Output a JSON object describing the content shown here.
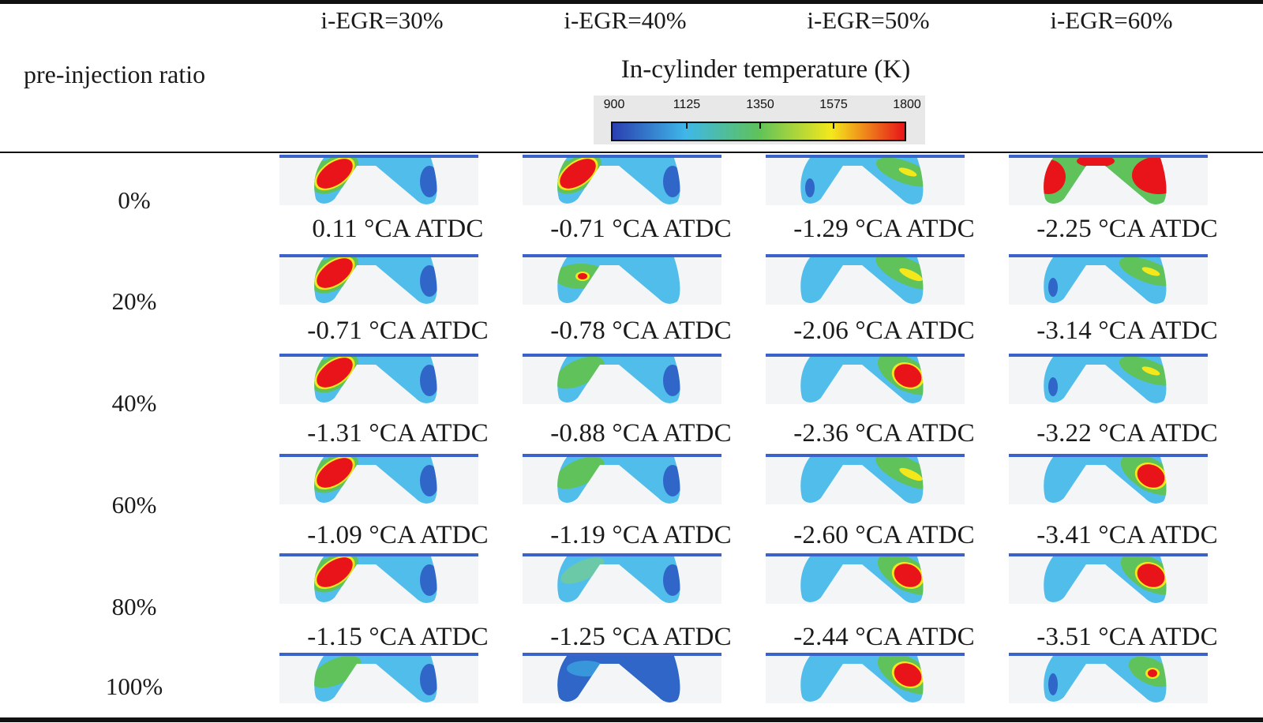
{
  "header": {
    "row_axis_label": "pre-injection ratio",
    "columns": [
      "i-EGR=30%",
      "i-EGR=40%",
      "i-EGR=50%",
      "i-EGR=60%"
    ],
    "legend": {
      "title": "In-cylinder temperature (K)",
      "ticks": [
        "900",
        "1125",
        "1350",
        "1575",
        "1800"
      ],
      "colors": [
        "#2a3fb0",
        "#3fb7e8",
        "#5fc25a",
        "#f4e81c",
        "#e8141a"
      ]
    }
  },
  "rows": [
    {
      "label": "0%",
      "captions": [
        "0.11 °CA ATDC",
        "-0.71 °CA ATDC",
        "-1.29 °CA ATDC",
        "-2.25 °CA ATDC"
      ]
    },
    {
      "label": "20%",
      "captions": [
        "-0.71 °CA ATDC",
        "-0.78 °CA ATDC",
        "-2.06 °CA ATDC",
        "-3.14 °CA ATDC"
      ]
    },
    {
      "label": "40%",
      "captions": [
        "-1.31 °CA ATDC",
        "-0.88 °CA ATDC",
        "-2.36 °CA ATDC",
        "-3.22 °CA ATDC"
      ]
    },
    {
      "label": "60%",
      "captions": [
        "-1.09 °CA ATDC",
        "-1.19 °CA ATDC",
        "-2.60 °CA ATDC",
        "-3.41 °CA ATDC"
      ]
    },
    {
      "label": "80%",
      "captions": [
        "-1.15 °CA ATDC",
        "-1.25 °CA ATDC",
        "-2.44 °CA ATDC",
        "-3.51 °CA ATDC"
      ]
    },
    {
      "label": "100%",
      "captions": []
    }
  ],
  "contour_images": [
    [
      "left-hot-core",
      "left-hot-core",
      "cool-right-warm",
      "wide-hot-spread"
    ],
    [
      "left-hot-core",
      "left-small-spot",
      "right-warm",
      "cool-right-warm"
    ],
    [
      "left-hot-core",
      "left-warm",
      "right-hot-core",
      "cool-right-warm"
    ],
    [
      "left-hot-core",
      "left-warm",
      "right-warm",
      "right-hot-core"
    ],
    [
      "left-hot-core",
      "left-warm-faint",
      "right-hot-core",
      "right-hot-core"
    ],
    [
      "left-warm",
      "cool",
      "right-hot-core",
      "right-small-spot"
    ]
  ]
}
